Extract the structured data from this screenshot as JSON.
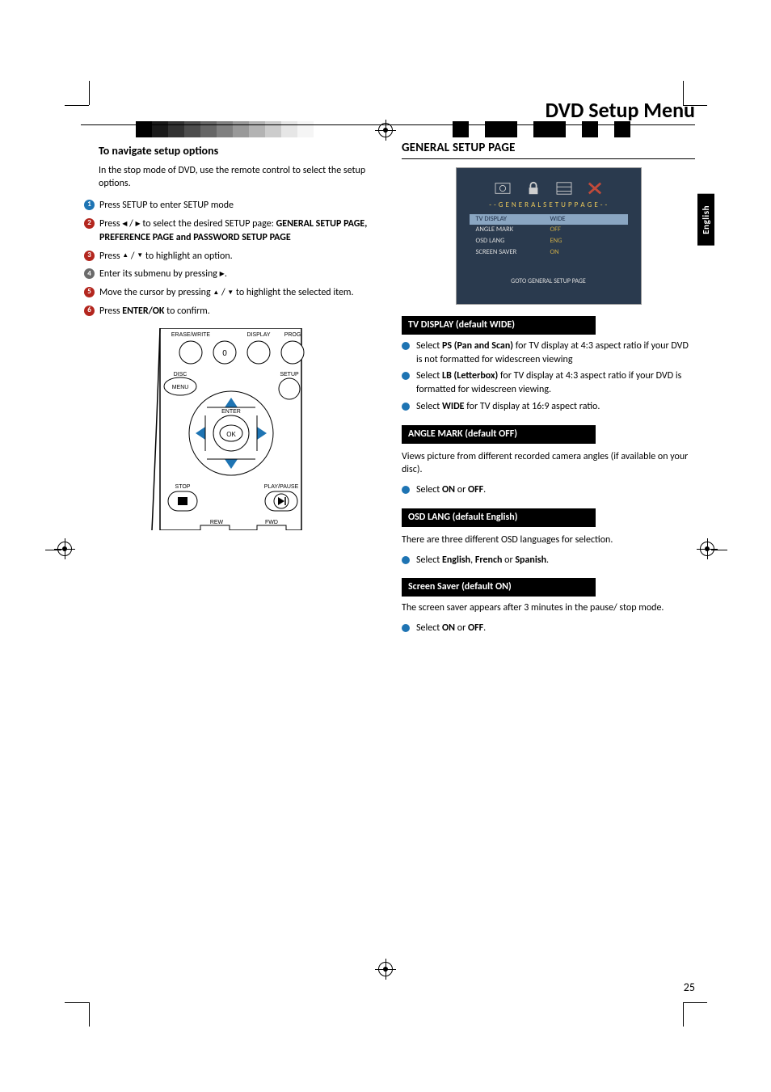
{
  "page": {
    "title": "DVD Setup Menu",
    "language_tab": "English",
    "page_number": "25"
  },
  "crop_bars": {
    "left_shades": [
      "#000000",
      "#1a1a1a",
      "#333333",
      "#4d4d4d",
      "#666666",
      "#808080",
      "#999999",
      "#b3b3b3",
      "#cccccc",
      "#e6e6e6",
      "#f5f5f5",
      "#ffffff"
    ],
    "right_shades": [
      "#ffffff",
      "#000000",
      "#ffffff",
      "#000000",
      "#000000",
      "#ffffff",
      "#000000",
      "#000000",
      "#ffffff",
      "#000000",
      "#ffffff",
      "#000000"
    ]
  },
  "left": {
    "heading": "To navigate setup options",
    "intro": " In the stop mode of DVD, use the remote control to select the setup options.",
    "steps": [
      {
        "n": "1",
        "color": "#1e74b3",
        "text": "Press SETUP to enter SETUP mode"
      },
      {
        "n": "2",
        "color": "#b3261e",
        "text_pre": "Press ",
        "arrows_lr": true,
        "text_mid": " to select the desired  SETUP page: ",
        "bold": "GENERAL SETUP PAGE, PREFERENCE PAGE  and PASSWORD SETUP PAGE"
      },
      {
        "n": "3",
        "color": "#b3261e",
        "text_pre": "Press  ",
        "arrows_ud": true,
        "text_post": " to highlight an option."
      },
      {
        "n": "4",
        "color": "#6b6b6b",
        "text_pre": "Enter its submenu by pressing  ",
        "arrow_r": true,
        "text_post": "."
      },
      {
        "n": "5",
        "color": "#b3261e",
        "text_pre": "Move the cursor by pressing   ",
        "arrows_ud": true,
        "text_post": "  to highlight the selected item."
      },
      {
        "n": "6",
        "color": "#b3261e",
        "text_pre": "Press ",
        "bold": "ENTER/OK",
        "text_post": " to confirm."
      }
    ],
    "remote": {
      "labels": {
        "erase": "ERASE/WRITE",
        "zero": "0",
        "display": "DISPLAY",
        "prog": "PROG",
        "disc": "DISC",
        "menu": "MENU",
        "setup": "SETUP",
        "enter": "ENTER",
        "ok": "OK",
        "stop": "STOP",
        "play": "PLAY/PAUSE",
        "rew": "REW",
        "fwd": "FWD"
      },
      "accent_color": "#1e74b3"
    }
  },
  "right": {
    "heading": "GENERAL SETUP PAGE",
    "osd": {
      "bg": "#2a3a4e",
      "title_color": "#e8c65a",
      "value_color": "#c8a948",
      "row_color": "#dcdcdc",
      "hl_bg": "#8aa6c2",
      "x_color": "#c24a3a",
      "title": "- -  G E N E R A L   S E T U P   P A G E   - -",
      "rows": [
        {
          "k": "TV DISPLAY",
          "v": "WIDE",
          "hl": true
        },
        {
          "k": "ANGLE MARK",
          "v": "OFF"
        },
        {
          "k": "OSD LANG",
          "v": "ENG"
        },
        {
          "k": "SCREEN SAVER",
          "v": "ON"
        }
      ],
      "footer": "GOTO GENERAL SETUP PAGE"
    },
    "band_bg": "#000000",
    "bullet_color": "#1e74b3",
    "sections": [
      {
        "band": "TV DISPLAY  (default WIDE)",
        "bullets": [
          {
            "pre": "Select ",
            "b": "PS (Pan and Scan)",
            "post": " for TV display at 4:3 aspect ratio if your DVD is not formatted for widescreen viewing"
          },
          {
            "pre": "Select ",
            "b": "LB (Letterbox)",
            "post": " for TV display at 4:3 aspect ratio if your DVD is formatted for widescreen viewing."
          },
          {
            "pre": "Select ",
            "b": "WIDE",
            "post": " for TV display at 16:9 aspect ratio."
          }
        ]
      },
      {
        "band": "ANGLE MARK  (default OFF)",
        "para": "Views picture from different recorded camera angles (if available on your disc).",
        "bullets": [
          {
            "pre": "Select ",
            "b": "ON",
            "mid": " or ",
            "b2": "OFF",
            "post": "."
          }
        ]
      },
      {
        "band": "OSD LANG  (default English)",
        "para": "There are three different OSD languages for selection.",
        "bullets": [
          {
            "pre": "Select ",
            "b": "English",
            "mid": ", ",
            "b2": "French",
            "mid2": " or ",
            "b3": "Spanish",
            "post": "."
          }
        ]
      },
      {
        "band": "Screen Saver (default ON)",
        "para_after_band": "The screen saver appears after 3 minutes in the pause/ stop mode.",
        "bullets": [
          {
            "pre": "Select ",
            "b": "ON",
            "mid": " or ",
            "b2": "OFF",
            "post": "."
          }
        ]
      }
    ]
  }
}
